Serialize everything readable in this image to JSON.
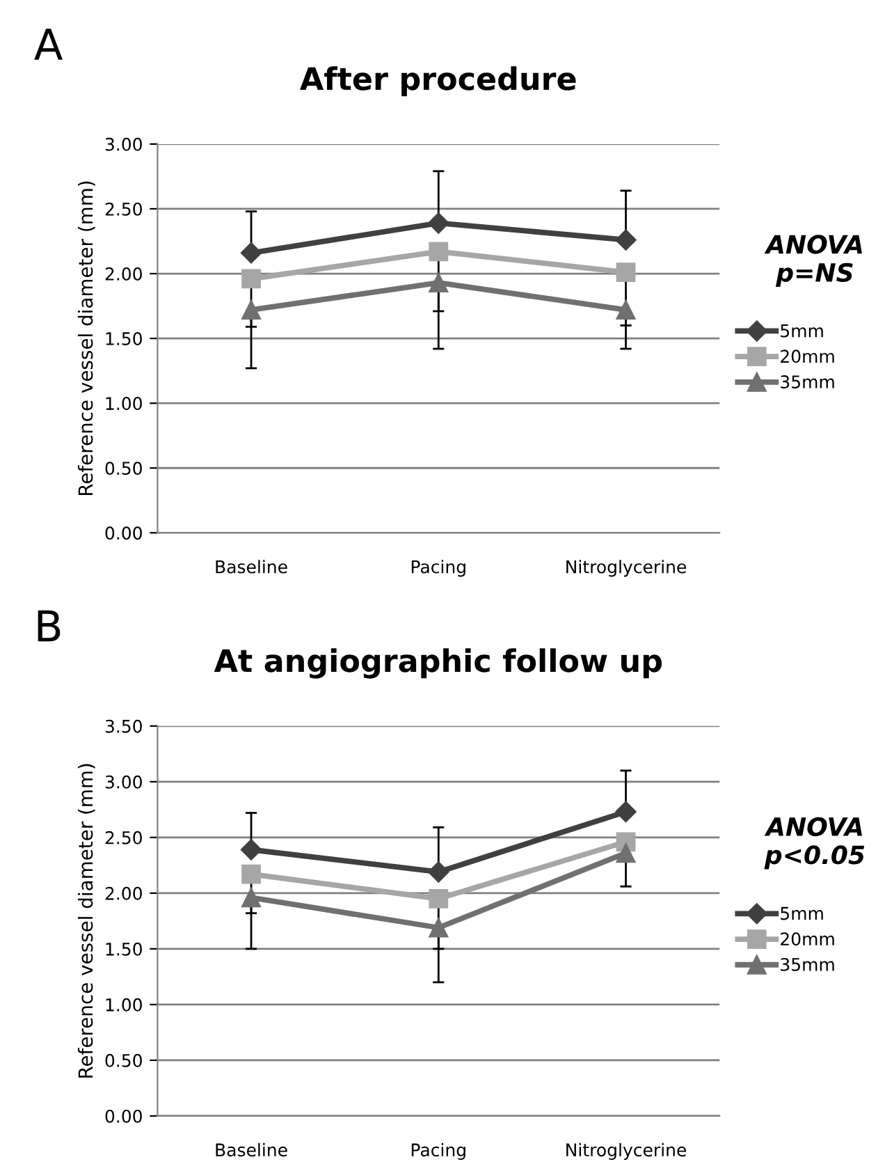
{
  "chart_data": [
    {
      "type": "line",
      "title": "After procedure",
      "ylabel": "Reference vessel diameter (mm)",
      "annotations": [
        "A",
        "ANOVA\np=NS"
      ],
      "categories": [
        "Baseline",
        "Pacing",
        "Nitroglycerine"
      ],
      "ylim": [
        0,
        3
      ],
      "yticks": [
        {
          "value": 0,
          "label": "0.00"
        },
        {
          "value": 0.5,
          "label": "0.50"
        },
        {
          "value": 1,
          "label": "1.00"
        },
        {
          "value": 1.5,
          "label": "1.50"
        },
        {
          "value": 2,
          "label": "2.00"
        },
        {
          "value": 2.5,
          "label": "2.50"
        },
        {
          "value": 3,
          "label": "3.00"
        }
      ],
      "grid": "y",
      "legend": "right",
      "line_style": "solid",
      "series": [
        {
          "name": "5mm",
          "color": "#404040",
          "marker": "diamond",
          "values": [
            2.16,
            2.39,
            2.26
          ],
          "errors": [
            [
              2.16,
              2.48
            ],
            [
              2.39,
              2.79
            ],
            [
              2.26,
              2.64
            ]
          ]
        },
        {
          "name": "20mm",
          "color": "#a6a6a6",
          "marker": "square",
          "values": [
            1.96,
            2.17,
            2.01
          ],
          "errors": [
            [
              1.59,
              1.96
            ],
            [
              1.71,
              2.17
            ],
            [
              1.6,
              2.01
            ]
          ]
        },
        {
          "name": "35mm",
          "color": "#707070",
          "marker": "triangle",
          "values": [
            1.72,
            1.93,
            1.72
          ],
          "errors": [
            [
              1.27,
              1.72
            ],
            [
              1.42,
              1.93
            ],
            [
              1.42,
              1.72
            ]
          ]
        }
      ]
    },
    {
      "type": "line",
      "title": "At angiographic follow up",
      "ylabel": "Reference vessel diameter (mm)",
      "annotations": [
        "B",
        "ANOVA\np<0.05"
      ],
      "categories": [
        "Baseline",
        "Pacing",
        "Nitroglycerine"
      ],
      "ylim": [
        0,
        3.5
      ],
      "yticks": [
        {
          "value": 0,
          "label": "0.00"
        },
        {
          "value": 0.5,
          "label": "0.50"
        },
        {
          "value": 1,
          "label": "1.00"
        },
        {
          "value": 1.5,
          "label": "1.50"
        },
        {
          "value": 2,
          "label": "2.00"
        },
        {
          "value": 2.5,
          "label": "2.50"
        },
        {
          "value": 3,
          "label": "3.00"
        },
        {
          "value": 3.5,
          "label": "3.50"
        }
      ],
      "grid": "y",
      "legend": "right",
      "line_style": "solid",
      "series": [
        {
          "name": "5mm",
          "color": "#404040",
          "marker": "diamond",
          "values": [
            2.39,
            2.19,
            2.73
          ],
          "errors": [
            [
              2.39,
              2.72
            ],
            [
              2.19,
              2.59
            ],
            [
              2.73,
              3.1
            ]
          ]
        },
        {
          "name": "20mm",
          "color": "#a6a6a6",
          "marker": "square",
          "values": [
            2.17,
            1.95,
            2.46
          ],
          "errors": [
            [
              1.82,
              2.17
            ],
            [
              1.5,
              1.95
            ],
            null
          ]
        },
        {
          "name": "35mm",
          "color": "#707070",
          "marker": "triangle",
          "values": [
            1.96,
            1.69,
            2.36
          ],
          "errors": [
            [
              1.5,
              1.96
            ],
            [
              1.2,
              1.69
            ],
            [
              2.06,
              2.36
            ]
          ]
        }
      ]
    }
  ]
}
